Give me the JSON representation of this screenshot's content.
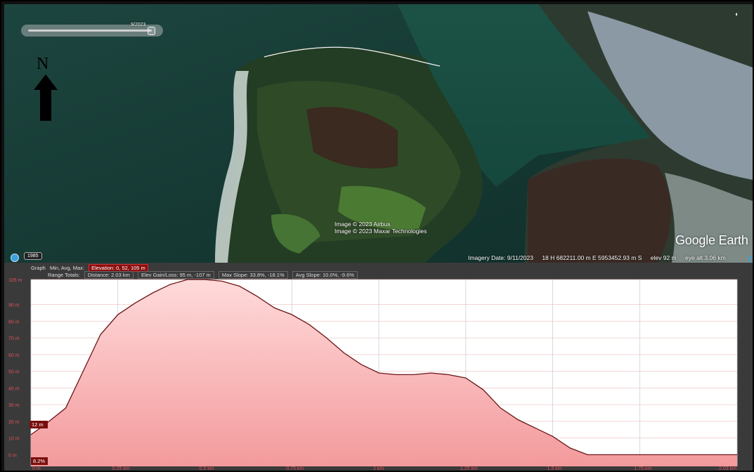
{
  "map": {
    "time_slider_date": "9/2023",
    "north_letter": "N",
    "credits": [
      "Image © 2023 Airbus",
      "Image © 2023 Maxar Technologies"
    ],
    "logo": "Google Earth",
    "year_button": "1985",
    "status": {
      "imagery_date": "Imagery Date: 9/11/2023",
      "coords": "18 H 682211.00 m E 5953452.93 m S",
      "elev": "elev   92 m",
      "eye_alt": "eye alt  3.06 km"
    }
  },
  "profile": {
    "graph_label": "Graph",
    "min_avg_max": "Min, Avg, Max:",
    "elevation": "Elevation: 0, 52, 105 m",
    "range_totals": "Range Totals:",
    "distance": "Distance: 2.03 km",
    "gain_loss": "Elev Gain/Loss: 95 m, -107 m",
    "max_slope": "Max Slope: 33.8%, -18.1%",
    "avg_slope": "Avg Slope: 10.0%, -9.6%",
    "marker_elev": "12 m",
    "marker_slope": "8.2%",
    "colors": {
      "line": "#6b1515",
      "fill_top": "#ffdada",
      "fill_bottom": "#f39a9c",
      "label": "#e04f5c"
    }
  },
  "chart_data": {
    "type": "area",
    "y_ticks": [
      "0 m",
      "10 m",
      "20 m",
      "30 m",
      "40 m",
      "50 m",
      "60 m",
      "70 m",
      "80 m",
      "90 m",
      "105 m"
    ],
    "y_tick_values": [
      0,
      10,
      20,
      30,
      40,
      50,
      60,
      70,
      80,
      90,
      105
    ],
    "x_ticks": [
      "0 m",
      "0.25 km",
      "0.5 km",
      "0.75 km",
      "1 km",
      "1.25 km",
      "1.5 km",
      "1.75 km",
      "2.03 km"
    ],
    "x_tick_values": [
      0,
      0.25,
      0.5,
      0.75,
      1.0,
      1.25,
      1.5,
      1.75,
      2.03
    ],
    "xlim": [
      0,
      2.03
    ],
    "ylim": [
      -7,
      105
    ],
    "x": [
      0,
      0.04,
      0.1,
      0.15,
      0.2,
      0.25,
      0.3,
      0.35,
      0.4,
      0.45,
      0.5,
      0.55,
      0.6,
      0.65,
      0.7,
      0.75,
      0.8,
      0.85,
      0.9,
      0.95,
      1.0,
      1.05,
      1.1,
      1.15,
      1.2,
      1.25,
      1.3,
      1.35,
      1.4,
      1.45,
      1.5,
      1.55,
      1.6,
      1.65,
      1.7,
      1.75,
      1.8,
      1.85,
      1.9,
      1.95,
      2.0,
      2.03
    ],
    "y": [
      12,
      18,
      28,
      50,
      72,
      84,
      91,
      97,
      102,
      105,
      105,
      104,
      101,
      95,
      88,
      84,
      78,
      70,
      61,
      54,
      49,
      48,
      48,
      49,
      48,
      46,
      39,
      28,
      21,
      16,
      11,
      4,
      0,
      0,
      0,
      0,
      0,
      0,
      0,
      0,
      0,
      0
    ]
  }
}
